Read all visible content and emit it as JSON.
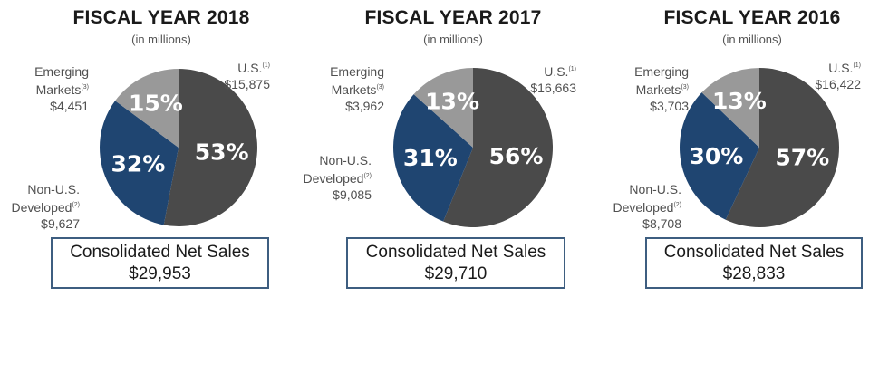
{
  "colors": {
    "us": "#4a4a4a",
    "non_us_developed": "#1f4571",
    "emerging": "#999999",
    "box_border": "#3e5e80"
  },
  "chart_data": [
    {
      "type": "pie",
      "title": "FISCAL YEAR 2018",
      "subtitle": "(in millions)",
      "slices": [
        {
          "name": "U.S.",
          "sup": "(1)",
          "amount": "$15,875",
          "value": 15875,
          "percent_label": "53%"
        },
        {
          "name": "Non-U.S. Developed",
          "name_line1": "Non-U.S.",
          "name_line2": "Developed",
          "sup": "(2)",
          "amount": "$9,627",
          "value": 9627,
          "percent_label": "32%"
        },
        {
          "name": "Emerging Markets",
          "name_line1": "Emerging",
          "name_line2": "Markets",
          "sup": "(3)",
          "amount": "$4,451",
          "value": 4451,
          "percent_label": "15%"
        }
      ],
      "total_label": "Consolidated Net Sales",
      "total_value": "$29,953"
    },
    {
      "type": "pie",
      "title": "FISCAL YEAR 2017",
      "subtitle": "(in millions)",
      "slices": [
        {
          "name": "U.S.",
          "sup": "(1)",
          "amount": "$16,663",
          "value": 16663,
          "percent_label": "56%"
        },
        {
          "name": "Non-U.S. Developed",
          "name_line1": "Non-U.S.",
          "name_line2": "Developed",
          "sup": "(2)",
          "amount": "$9,085",
          "value": 9085,
          "percent_label": "31%"
        },
        {
          "name": "Emerging Markets",
          "name_line1": "Emerging",
          "name_line2": "Markets",
          "sup": "(3)",
          "amount": "$3,962",
          "value": 3962,
          "percent_label": "13%"
        }
      ],
      "total_label": "Consolidated Net Sales",
      "total_value": "$29,710"
    },
    {
      "type": "pie",
      "title": "FISCAL YEAR 2016",
      "subtitle": "(in millions)",
      "slices": [
        {
          "name": "U.S.",
          "sup": "(1)",
          "amount": "$16,422",
          "value": 16422,
          "percent_label": "57%"
        },
        {
          "name": "Non-U.S. Developed",
          "name_line1": "Non-U.S.",
          "name_line2": "Developed",
          "sup": "(2)",
          "amount": "$8,708",
          "value": 8708,
          "percent_label": "30%"
        },
        {
          "name": "Emerging Markets",
          "name_line1": "Emerging",
          "name_line2": "Markets",
          "sup": "(3)",
          "amount": "$3,703",
          "value": 3703,
          "percent_label": "13%"
        }
      ],
      "total_label": "Consolidated Net Sales",
      "total_value": "$28,833"
    }
  ]
}
